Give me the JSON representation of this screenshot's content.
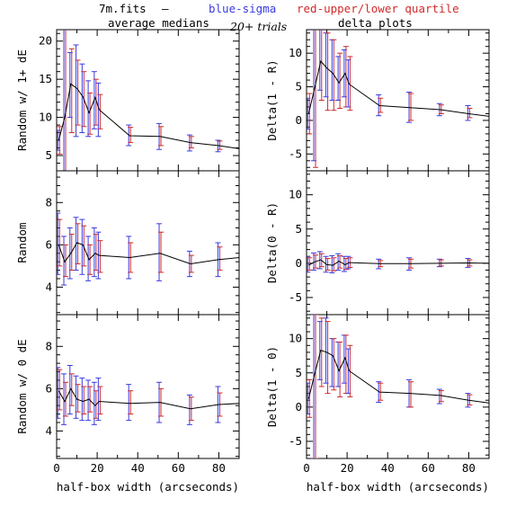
{
  "header": {
    "file": "7m.fits",
    "dash": "—",
    "blue": "blue-sigma",
    "red": "red-upper/lower quartile",
    "left_title": "average medians",
    "trials": "20+ trials",
    "right_title": "delta plots"
  },
  "colors": {
    "sigma": "#3a3ae0",
    "quartile": "#d02a2a",
    "median": "#000000"
  },
  "chart_data": [
    {
      "type": "line",
      "panel": "left-top",
      "ylabel": "Random w/ 1+ dE",
      "xlabel": "",
      "xlim": [
        0,
        90
      ],
      "ylim": [
        3,
        21.5
      ],
      "xticks": [
        0,
        20,
        40,
        60,
        80
      ],
      "xtick_labels_shown": false,
      "yticks": [
        5,
        10,
        15,
        20
      ],
      "x": [
        1,
        4,
        7,
        10,
        13,
        16,
        19,
        21,
        36,
        51,
        66,
        80,
        90
      ],
      "y": [
        7.0,
        10.0,
        14.4,
        13.8,
        12.7,
        10.6,
        12.6,
        11.0,
        7.6,
        7.5,
        6.7,
        6.3,
        5.9
      ],
      "sigma": [
        [
          5.7,
          8.3
        ],
        [
          -2,
          22
        ],
        [
          10,
          18.5
        ],
        [
          7.5,
          19.5
        ],
        [
          8,
          17
        ],
        [
          7.5,
          14.8
        ],
        [
          8.5,
          16
        ],
        [
          7.5,
          14.5
        ],
        [
          6.3,
          9.0
        ],
        [
          5.8,
          9.2
        ],
        [
          5.6,
          7.7
        ],
        [
          5.5,
          7.0
        ],
        null
      ],
      "quartile": [
        [
          5.2,
          8.8
        ],
        [
          -2,
          22
        ],
        [
          8,
          19
        ],
        [
          9,
          17.5
        ],
        [
          8.8,
          16
        ],
        [
          7.8,
          13.2
        ],
        [
          9,
          15
        ],
        [
          8.5,
          13
        ],
        [
          6.7,
          8.7
        ],
        [
          6.3,
          8.8
        ],
        [
          6.0,
          7.5
        ],
        [
          5.8,
          6.9
        ],
        null
      ]
    },
    {
      "type": "line",
      "panel": "left-mid",
      "ylabel": "Random",
      "xlabel": "",
      "xlim": [
        0,
        90
      ],
      "ylim": [
        2.7,
        9.5
      ],
      "xticks": [
        0,
        20,
        40,
        60,
        80
      ],
      "xtick_labels_shown": false,
      "yticks": [
        4,
        6,
        8
      ],
      "x": [
        1,
        4,
        7,
        10,
        13,
        16,
        19,
        21,
        36,
        51,
        66,
        80,
        90
      ],
      "y": [
        6.0,
        5.2,
        5.6,
        6.1,
        6.0,
        5.3,
        5.6,
        5.5,
        5.4,
        5.6,
        5.1,
        5.3,
        5.4
      ],
      "sigma": [
        [
          4.6,
          7.5
        ],
        [
          4.1,
          6.4
        ],
        [
          4.4,
          6.8
        ],
        [
          4.8,
          7.3
        ],
        [
          4.6,
          7.2
        ],
        [
          4.3,
          6.4
        ],
        [
          4.5,
          6.8
        ],
        [
          4.4,
          6.6
        ],
        [
          4.4,
          6.4
        ],
        [
          4.3,
          7.0
        ],
        [
          4.5,
          5.7
        ],
        [
          4.5,
          6.1
        ],
        null
      ],
      "quartile": [
        [
          5.0,
          7.2
        ],
        [
          4.5,
          6.0
        ],
        [
          4.8,
          6.5
        ],
        [
          5.1,
          7.0
        ],
        [
          5.0,
          6.9
        ],
        [
          4.6,
          6.0
        ],
        [
          4.8,
          6.5
        ],
        [
          4.7,
          6.2
        ],
        [
          4.7,
          6.1
        ],
        [
          4.7,
          6.6
        ],
        [
          4.7,
          5.5
        ],
        [
          4.8,
          5.9
        ],
        null
      ]
    },
    {
      "type": "line",
      "panel": "left-bot",
      "ylabel": "Random w/ 0 dE",
      "xlabel": "half-box width (arcseconds)",
      "xlim": [
        0,
        90
      ],
      "ylim": [
        2.7,
        9.5
      ],
      "xticks": [
        0,
        20,
        40,
        60,
        80
      ],
      "xtick_labels_shown": true,
      "yticks": [
        4,
        6,
        8
      ],
      "x": [
        1,
        4,
        7,
        10,
        13,
        16,
        19,
        21,
        36,
        51,
        66,
        80,
        90
      ],
      "y": [
        5.9,
        5.4,
        6.0,
        5.5,
        5.4,
        5.5,
        5.2,
        5.4,
        5.3,
        5.35,
        5.05,
        5.25,
        5.3
      ],
      "sigma": [
        [
          4.6,
          7.0
        ],
        [
          4.3,
          6.7
        ],
        [
          4.8,
          7.1
        ],
        [
          4.6,
          6.6
        ],
        [
          4.5,
          6.5
        ],
        [
          4.5,
          6.4
        ],
        [
          4.3,
          6.3
        ],
        [
          4.5,
          6.5
        ],
        [
          4.5,
          6.2
        ],
        [
          4.4,
          6.3
        ],
        [
          4.3,
          5.7
        ],
        [
          4.4,
          6.1
        ],
        null
      ],
      "quartile": [
        [
          5.0,
          6.9
        ],
        [
          4.7,
          6.3
        ],
        [
          5.2,
          6.7
        ],
        [
          4.9,
          6.2
        ],
        [
          4.8,
          6.1
        ],
        [
          4.9,
          6.1
        ],
        [
          4.6,
          5.9
        ],
        [
          4.8,
          6.1
        ],
        [
          4.8,
          5.9
        ],
        [
          4.7,
          6.0
        ],
        [
          4.5,
          5.6
        ],
        [
          4.7,
          5.8
        ],
        null
      ]
    },
    {
      "type": "line",
      "panel": "right-top",
      "ylabel": "Delta(1 - R)",
      "xlabel": "",
      "xlim": [
        0,
        90
      ],
      "ylim": [
        -7.5,
        13.5
      ],
      "xticks": [
        0,
        20,
        40,
        60,
        80
      ],
      "xtick_labels_shown": false,
      "yticks": [
        -5,
        0,
        5,
        10
      ],
      "x": [
        1,
        4,
        7,
        10,
        13,
        16,
        19,
        21,
        36,
        51,
        66,
        80,
        90
      ],
      "y": [
        1.0,
        4.8,
        8.8,
        7.8,
        7.0,
        5.6,
        7.0,
        5.4,
        2.2,
        1.9,
        1.6,
        1.0,
        0.6
      ],
      "sigma": [
        [
          -1.3,
          3.3
        ],
        [
          -6,
          14
        ],
        [
          4.5,
          14
        ],
        [
          3.5,
          13
        ],
        [
          3,
          12
        ],
        [
          3,
          9.5
        ],
        [
          3.5,
          10.5
        ],
        [
          2,
          9
        ],
        [
          0.7,
          3.8
        ],
        [
          -0.3,
          4.2
        ],
        [
          0.7,
          2.5
        ],
        [
          0,
          2.2
        ],
        null
      ],
      "quartile": [
        [
          -2,
          4
        ],
        [
          -7,
          14
        ],
        [
          3,
          14
        ],
        [
          1.5,
          13
        ],
        [
          1.5,
          12
        ],
        [
          1.8,
          10
        ],
        [
          2,
          11
        ],
        [
          1.5,
          9.5
        ],
        [
          1.2,
          3.3
        ],
        [
          0,
          4
        ],
        [
          1,
          2.3
        ],
        [
          0.4,
          1.8
        ],
        null
      ]
    },
    {
      "type": "line",
      "panel": "right-mid",
      "ylabel": "Delta(0 - R)",
      "xlabel": "",
      "xlim": [
        0,
        90
      ],
      "ylim": [
        -7.5,
        13.5
      ],
      "xticks": [
        0,
        20,
        40,
        60,
        80
      ],
      "xtick_labels_shown": false,
      "yticks": [
        -5,
        0,
        5,
        10
      ],
      "x": [
        1,
        4,
        7,
        10,
        13,
        16,
        19,
        21,
        36,
        51,
        66,
        80,
        90
      ],
      "y": [
        -0.3,
        0.2,
        0.5,
        -0.2,
        -0.3,
        0.3,
        -0.2,
        0.1,
        -0.05,
        -0.05,
        0.0,
        0.05,
        0.0
      ],
      "sigma": [
        [
          -1.3,
          1.0
        ],
        [
          -1.0,
          1.5
        ],
        [
          -0.8,
          1.7
        ],
        [
          -1.3,
          1.0
        ],
        [
          -1.4,
          1.1
        ],
        [
          -1.0,
          1.4
        ],
        [
          -1.2,
          1.0
        ],
        [
          -0.8,
          1.0
        ],
        [
          -0.8,
          0.6
        ],
        [
          -1.0,
          0.8
        ],
        [
          -0.5,
          0.6
        ],
        [
          -0.6,
          0.7
        ],
        null
      ],
      "quartile": [
        [
          -1.0,
          0.8
        ],
        [
          -0.7,
          1.2
        ],
        [
          -0.5,
          1.4
        ],
        [
          -1.0,
          0.7
        ],
        [
          -1.1,
          0.8
        ],
        [
          -0.7,
          1.1
        ],
        [
          -0.9,
          0.7
        ],
        [
          -0.6,
          0.8
        ],
        [
          -0.5,
          0.4
        ],
        [
          -0.7,
          0.6
        ],
        [
          -0.4,
          0.5
        ],
        [
          -0.4,
          0.5
        ],
        null
      ]
    },
    {
      "type": "line",
      "panel": "right-bot",
      "ylabel": "Delta(1 - 0)",
      "xlabel": "half-box width (arcseconds)",
      "xlim": [
        0,
        90
      ],
      "ylim": [
        -7.5,
        13.5
      ],
      "xticks": [
        0,
        20,
        40,
        60,
        80
      ],
      "xtick_labels_shown": true,
      "yticks": [
        -5,
        0,
        5,
        10
      ],
      "x": [
        1,
        4,
        7,
        10,
        13,
        16,
        19,
        21,
        36,
        51,
        66,
        80,
        90
      ],
      "y": [
        1.2,
        4.8,
        8.3,
        8.0,
        7.5,
        5.3,
        7.2,
        5.3,
        2.2,
        2.0,
        1.7,
        1.0,
        0.6
      ],
      "sigma": [
        [
          -1.0,
          3.5
        ],
        [
          -7.5,
          13.5
        ],
        [
          4,
          12.5
        ],
        [
          3.5,
          13
        ],
        [
          3,
          10
        ],
        [
          3,
          9.5
        ],
        [
          3.5,
          10.5
        ],
        [
          2,
          8.5
        ],
        [
          0.7,
          3.7
        ],
        [
          0,
          4
        ],
        [
          0.5,
          2.6
        ],
        [
          0,
          2
        ],
        null
      ],
      "quartile": [
        [
          -1.5,
          4
        ],
        [
          -7.5,
          13.5
        ],
        [
          3,
          13
        ],
        [
          2,
          12.5
        ],
        [
          2.5,
          10
        ],
        [
          1.5,
          9.5
        ],
        [
          2,
          10.5
        ],
        [
          1.5,
          9
        ],
        [
          1,
          3.5
        ],
        [
          0,
          3.7
        ],
        [
          0.8,
          2.4
        ],
        [
          0.3,
          1.8
        ],
        null
      ]
    }
  ]
}
